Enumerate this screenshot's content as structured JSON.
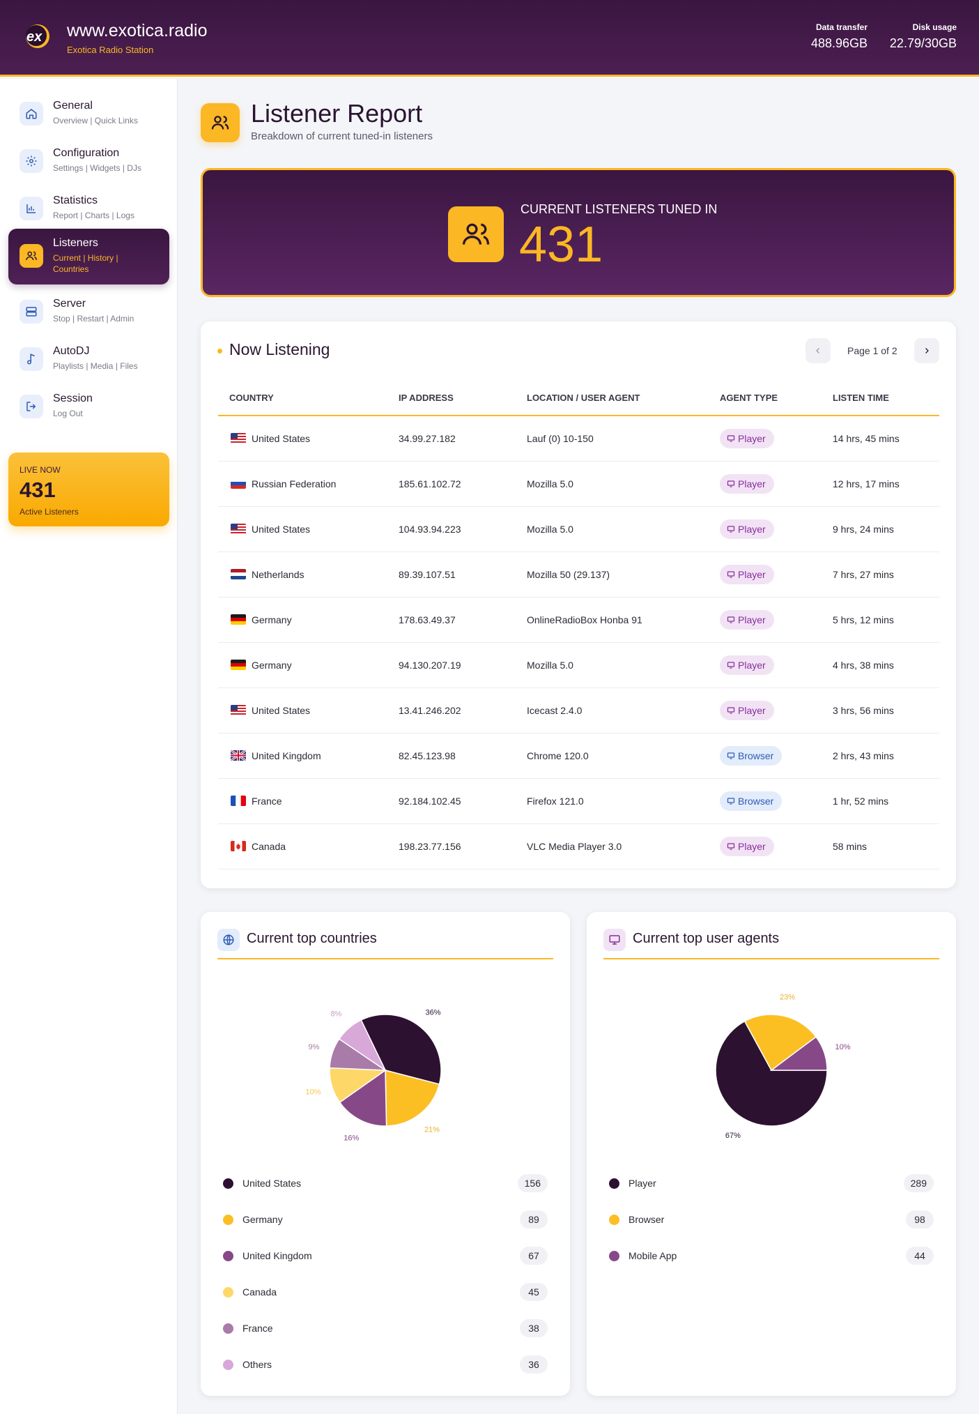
{
  "header": {
    "site_title": "www.exotica.radio",
    "site_subtitle": "Exotica Radio Station",
    "logo_text": "ex",
    "data_transfer_label": "Data transfer",
    "data_transfer_value": "488.96GB",
    "disk_usage_label": "Disk usage",
    "disk_usage_value": "22.79/30GB"
  },
  "sidebar": {
    "items": [
      {
        "label": "General",
        "sub": "Overview | Quick Links",
        "icon": "home-icon"
      },
      {
        "label": "Configuration",
        "sub": "Settings | Widgets | DJs",
        "icon": "gear-icon"
      },
      {
        "label": "Statistics",
        "sub": "Report | Charts | Logs",
        "icon": "bar-chart-icon"
      },
      {
        "label": "Listeners",
        "sub": "Current | History | Countries",
        "icon": "users-icon",
        "active": true
      },
      {
        "label": "Server",
        "sub": "Stop | Restart | Admin",
        "icon": "server-icon"
      },
      {
        "label": "AutoDJ",
        "sub": "Playlists | Media | Files",
        "icon": "music-note-icon"
      },
      {
        "label": "Session",
        "sub": "Log Out",
        "icon": "logout-icon"
      }
    ],
    "live": {
      "label": "LIVE NOW",
      "value": "431",
      "caption": "Active Listeners"
    }
  },
  "page": {
    "title": "Listener Report",
    "subtitle": "Breakdown of current tuned-in listeners"
  },
  "hero": {
    "label": "CURRENT LISTENERS TUNED IN",
    "value": "431"
  },
  "now_listening": {
    "title": "Now Listening",
    "pagination": "Page 1 of 2",
    "columns": [
      "COUNTRY",
      "IP ADDRESS",
      "LOCATION / USER AGENT",
      "AGENT TYPE",
      "LISTEN TIME"
    ],
    "rows": [
      {
        "flag": "us",
        "country": "United States",
        "ip": "34.99.27.182",
        "agent": "Lauf (0) 10-150",
        "type": "Player",
        "time": "14 hrs, 45 mins"
      },
      {
        "flag": "ru",
        "country": "Russian Federation",
        "ip": "185.61.102.72",
        "agent": "Mozilla 5.0",
        "type": "Player",
        "time": "12 hrs, 17 mins"
      },
      {
        "flag": "us",
        "country": "United States",
        "ip": "104.93.94.223",
        "agent": "Mozilla 5.0",
        "type": "Player",
        "time": "9 hrs, 24 mins"
      },
      {
        "flag": "nl",
        "country": "Netherlands",
        "ip": "89.39.107.51",
        "agent": "Mozilla 50 (29.137)",
        "type": "Player",
        "time": "7 hrs, 27 mins"
      },
      {
        "flag": "de",
        "country": "Germany",
        "ip": "178.63.49.37",
        "agent": "OnlineRadioBox Honba 91",
        "type": "Player",
        "time": "5 hrs, 12 mins"
      },
      {
        "flag": "de",
        "country": "Germany",
        "ip": "94.130.207.19",
        "agent": "Mozilla 5.0",
        "type": "Player",
        "time": "4 hrs, 38 mins"
      },
      {
        "flag": "us",
        "country": "United States",
        "ip": "13.41.246.202",
        "agent": "Icecast 2.4.0",
        "type": "Player",
        "time": "3 hrs, 56 mins"
      },
      {
        "flag": "gb",
        "country": "United Kingdom",
        "ip": "82.45.123.98",
        "agent": "Chrome 120.0",
        "type": "Browser",
        "time": "2 hrs, 43 mins"
      },
      {
        "flag": "fr",
        "country": "France",
        "ip": "92.184.102.45",
        "agent": "Firefox 121.0",
        "type": "Browser",
        "time": "1 hr, 52 mins"
      },
      {
        "flag": "ca",
        "country": "Canada",
        "ip": "198.23.77.156",
        "agent": "VLC Media Player 3.0",
        "type": "Player",
        "time": "58 mins"
      }
    ]
  },
  "colors": {
    "accent": "#fbb724",
    "brand_dark": "#3a1640",
    "player_badge": "#8a2c9c",
    "browser_badge": "#2d5bb4"
  },
  "chart_data": [
    {
      "type": "pie",
      "title": "Current top countries",
      "categories": [
        "United States",
        "Germany",
        "United Kingdom",
        "Canada",
        "France",
        "Others"
      ],
      "values": [
        156,
        89,
        67,
        45,
        38,
        36
      ],
      "percent_labels": [
        "36%",
        "21%",
        "16%",
        "10%",
        "9%",
        "8%"
      ],
      "colors": [
        "#2c1230",
        "#fbbf24",
        "#874888",
        "#fdd868",
        "#a97ba8",
        "#d8a8d8"
      ]
    },
    {
      "type": "pie",
      "title": "Current top user agents",
      "categories": [
        "Player",
        "Browser",
        "Mobile App"
      ],
      "values": [
        289,
        98,
        44
      ],
      "percent_labels": [
        "67%",
        "23%",
        "10%"
      ],
      "colors": [
        "#2c1230",
        "#fbbf24",
        "#874888"
      ]
    }
  ]
}
